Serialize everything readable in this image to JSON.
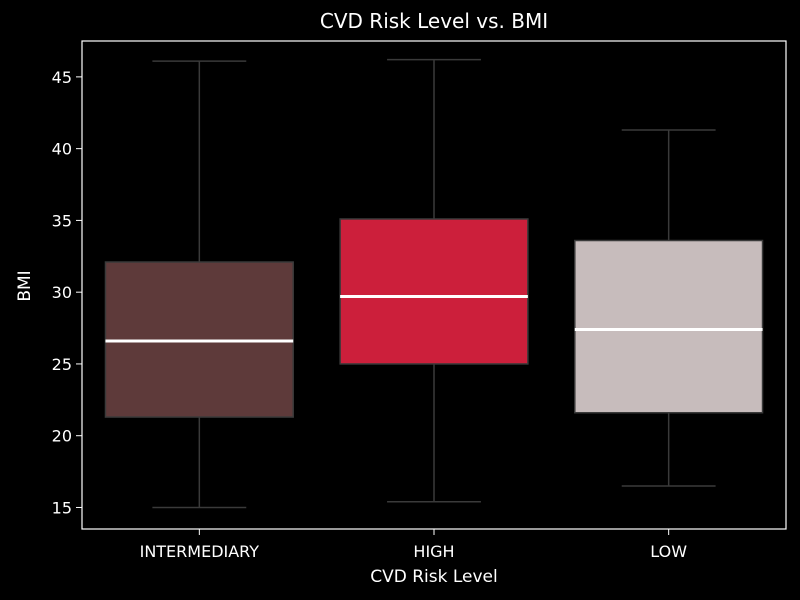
{
  "chart_data": {
    "type": "box",
    "title": "CVD Risk Level vs. BMI",
    "xlabel": "CVD Risk Level",
    "ylabel": "BMI",
    "ylim": [
      13.5,
      47.5
    ],
    "yticks": [
      15,
      20,
      25,
      30,
      35,
      40,
      45
    ],
    "grid": false,
    "categories": [
      "INTERMEDIARY",
      "HIGH",
      "LOW"
    ],
    "boxes": [
      {
        "category": "INTERMEDIARY",
        "whisker_low": 15.0,
        "q1": 21.3,
        "median": 26.6,
        "q3": 32.1,
        "whisker_high": 46.1,
        "color": "#5e3a3a"
      },
      {
        "category": "HIGH",
        "whisker_low": 15.4,
        "q1": 25.0,
        "median": 29.7,
        "q3": 35.1,
        "whisker_high": 46.2,
        "color": "#cc1f3b"
      },
      {
        "category": "LOW",
        "whisker_low": 16.5,
        "q1": 21.6,
        "median": 27.4,
        "q3": 33.6,
        "whisker_high": 41.3,
        "color": "#c7bcbc"
      }
    ],
    "colors": {
      "background": "#000000",
      "frame": "#ffffff",
      "text": "#ffffff",
      "whisker": "#3a3a3a",
      "median": "#ffffff"
    }
  }
}
